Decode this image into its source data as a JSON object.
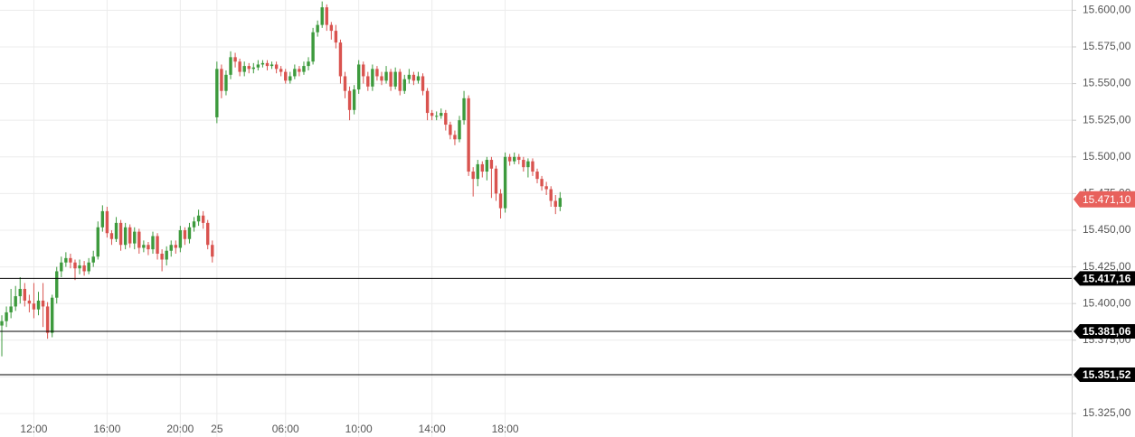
{
  "chart_data": {
    "type": "candlestick",
    "up_color": "#3d9a3d",
    "down_color": "#d9534f",
    "grid": true,
    "xlim": [
      -0.4,
      233.8
    ],
    "ylim": [
      15309,
      15607
    ],
    "xticks": [
      {
        "value": 7,
        "label": "12:00"
      },
      {
        "value": 23,
        "label": "16:00"
      },
      {
        "value": 39,
        "label": "20:00"
      },
      {
        "value": 47,
        "label": "25"
      },
      {
        "value": 62,
        "label": "06:00"
      },
      {
        "value": 78,
        "label": "10:00"
      },
      {
        "value": 94,
        "label": "14:00"
      },
      {
        "value": 110,
        "label": "18:00"
      }
    ],
    "yticks": [
      {
        "value": 15325,
        "label": "15.325,00"
      },
      {
        "value": 15350,
        "label": "15.350,00"
      },
      {
        "value": 15375,
        "label": "15.375,00"
      },
      {
        "value": 15400,
        "label": "15.400,00"
      },
      {
        "value": 15425,
        "label": "15.425,00"
      },
      {
        "value": 15450,
        "label": "15.450,00"
      },
      {
        "value": 15475,
        "label": "15.475,00"
      },
      {
        "value": 15500,
        "label": "15.500,00"
      },
      {
        "value": 15525,
        "label": "15.525,00"
      },
      {
        "value": 15550,
        "label": "15.550,00"
      },
      {
        "value": 15575,
        "label": "15.575,00"
      },
      {
        "value": 15600,
        "label": "15.600,00"
      }
    ],
    "levels": [
      {
        "value": 15417.16,
        "label": "15.417,16"
      },
      {
        "value": 15381.06,
        "label": "15.381,06"
      },
      {
        "value": 15351.52,
        "label": "15.351,52"
      }
    ],
    "last_price": {
      "value": 15471.1,
      "label": "15.471,10",
      "color": "#e8615c"
    },
    "candles": [
      [
        15385,
        15392,
        15364,
        15388
      ],
      [
        15388,
        15398,
        15384,
        15394
      ],
      [
        15394,
        15410,
        15390,
        15398
      ],
      [
        15398,
        15412,
        15395,
        15405
      ],
      [
        15405,
        15418,
        15400,
        15410
      ],
      [
        15410,
        15414,
        15398,
        15402
      ],
      [
        15402,
        15406,
        15394,
        15400
      ],
      [
        15400,
        15414,
        15390,
        15396
      ],
      [
        15396,
        15408,
        15392,
        15402
      ],
      [
        15402,
        15414,
        15384,
        15398
      ],
      [
        15398,
        15401,
        15376,
        15380
      ],
      [
        15380,
        15406,
        15377,
        15404
      ],
      [
        15404,
        15425,
        15400,
        15422
      ],
      [
        15422,
        15432,
        15418,
        15428
      ],
      [
        15428,
        15435,
        15425,
        15431
      ],
      [
        15431,
        15434,
        15424,
        15428
      ],
      [
        15428,
        15430,
        15416,
        15424
      ],
      [
        15424,
        15430,
        15420,
        15426
      ],
      [
        15426,
        15429,
        15419,
        15422
      ],
      [
        15422,
        15431,
        15420,
        15428
      ],
      [
        15428,
        15436,
        15425,
        15432
      ],
      [
        15432,
        15456,
        15430,
        15452
      ],
      [
        15452,
        15467,
        15449,
        15463
      ],
      [
        15463,
        15466,
        15445,
        15448
      ],
      [
        15448,
        15450,
        15440,
        15444
      ],
      [
        15444,
        15459,
        15442,
        15455
      ],
      [
        15455,
        15457,
        15436,
        15440
      ],
      [
        15440,
        15455,
        15437,
        15452
      ],
      [
        15452,
        15454,
        15438,
        15441
      ],
      [
        15441,
        15452,
        15437,
        15449
      ],
      [
        15449,
        15451,
        15434,
        15438
      ],
      [
        15438,
        15443,
        15435,
        15440
      ],
      [
        15440,
        15442,
        15433,
        15437
      ],
      [
        15437,
        15449,
        15434,
        15446
      ],
      [
        15446,
        15448,
        15430,
        15434
      ],
      [
        15434,
        15437,
        15422,
        15430
      ],
      [
        15430,
        15439,
        15426,
        15436
      ],
      [
        15436,
        15443,
        15432,
        15440
      ],
      [
        15440,
        15443,
        15434,
        15438
      ],
      [
        15438,
        15453,
        15435,
        15450
      ],
      [
        15450,
        15452,
        15440,
        15444
      ],
      [
        15444,
        15455,
        15441,
        15452
      ],
      [
        15452,
        15459,
        15449,
        15456
      ],
      [
        15456,
        15464,
        15453,
        15460
      ],
      [
        15460,
        15463,
        15451,
        15455
      ],
      [
        15455,
        15457,
        15437,
        15440
      ],
      [
        15440,
        15443,
        15428,
        15432
      ],
      [
        15527,
        15565,
        15523,
        15560
      ],
      [
        15560,
        15563,
        15540,
        15545
      ],
      [
        15545,
        15559,
        15542,
        15556
      ],
      [
        15556,
        15572,
        15553,
        15568
      ],
      [
        15568,
        15571,
        15561,
        15565
      ],
      [
        15565,
        15567,
        15555,
        15558
      ],
      [
        15558,
        15565,
        15555,
        15562
      ],
      [
        15562,
        15564,
        15557,
        15560
      ],
      [
        15560,
        15564,
        15557,
        15561
      ],
      [
        15561,
        15566,
        15559,
        15563
      ],
      [
        15563,
        15566,
        15561,
        15564
      ],
      [
        15564,
        15566,
        15559,
        15562
      ],
      [
        15562,
        15565,
        15560,
        15563
      ],
      [
        15563,
        15565,
        15557,
        15560
      ],
      [
        15560,
        15562,
        15555,
        15558
      ],
      [
        15558,
        15560,
        15550,
        15552
      ],
      [
        15552,
        15558,
        15550,
        15555
      ],
      [
        15555,
        15563,
        15553,
        15560
      ],
      [
        15560,
        15562,
        15555,
        15558
      ],
      [
        15558,
        15565,
        15556,
        15562
      ],
      [
        15562,
        15568,
        15559,
        15565
      ],
      [
        15565,
        15588,
        15563,
        15585
      ],
      [
        15585,
        15593,
        15582,
        15590
      ],
      [
        15590,
        15606,
        15588,
        15602
      ],
      [
        15602,
        15604,
        15586,
        15590
      ],
      [
        15590,
        15592,
        15580,
        15586
      ],
      [
        15586,
        15590,
        15574,
        15578
      ],
      [
        15578,
        15580,
        15550,
        15555
      ],
      [
        15555,
        15558,
        15540,
        15545
      ],
      [
        15545,
        15548,
        15525,
        15532
      ],
      [
        15532,
        15549,
        15529,
        15546
      ],
      [
        15546,
        15566,
        15543,
        15563
      ],
      [
        15563,
        15565,
        15550,
        15555
      ],
      [
        15555,
        15558,
        15545,
        15548
      ],
      [
        15548,
        15563,
        15545,
        15560
      ],
      [
        15560,
        15562,
        15552,
        15555
      ],
      [
        15555,
        15558,
        15549,
        15552
      ],
      [
        15552,
        15562,
        15550,
        15558
      ],
      [
        15558,
        15560,
        15545,
        15548
      ],
      [
        15548,
        15561,
        15546,
        15558
      ],
      [
        15558,
        15560,
        15542,
        15545
      ],
      [
        15545,
        15556,
        15543,
        15553
      ],
      [
        15553,
        15560,
        15550,
        15556
      ],
      [
        15556,
        15558,
        15549,
        15552
      ],
      [
        15552,
        15558,
        15550,
        15555
      ],
      [
        15555,
        15557,
        15542,
        15545
      ],
      [
        15545,
        15547,
        15525,
        15530
      ],
      [
        15530,
        15532,
        15525,
        15528
      ],
      [
        15528,
        15531,
        15525,
        15528
      ],
      [
        15528,
        15533,
        15526,
        15530
      ],
      [
        15530,
        15532,
        15518,
        15522
      ],
      [
        15522,
        15524,
        15512,
        15515
      ],
      [
        15515,
        15518,
        15508,
        15512
      ],
      [
        15512,
        15528,
        15510,
        15525
      ],
      [
        15525,
        15545,
        15522,
        15540
      ],
      [
        15540,
        15542,
        15487,
        15490
      ],
      [
        15490,
        15493,
        15473,
        15485
      ],
      [
        15485,
        15498,
        15480,
        15495
      ],
      [
        15495,
        15497,
        15486,
        15490
      ],
      [
        15490,
        15500,
        15484,
        15498
      ],
      [
        15498,
        15500,
        15472,
        15492
      ],
      [
        15492,
        15494,
        15470,
        15475
      ],
      [
        15475,
        15478,
        15458,
        15465
      ],
      [
        15465,
        15503,
        15462,
        15500
      ],
      [
        15500,
        15502,
        15494,
        15497
      ],
      [
        15497,
        15503,
        15495,
        15500
      ],
      [
        15500,
        15502,
        15495,
        15498
      ],
      [
        15498,
        15500,
        15490,
        15493
      ],
      [
        15493,
        15499,
        15486,
        15497
      ],
      [
        15497,
        15499,
        15487,
        15490
      ],
      [
        15490,
        15492,
        15482,
        15485
      ],
      [
        15485,
        15487,
        15477,
        15480
      ],
      [
        15480,
        15483,
        15474,
        15478
      ],
      [
        15478,
        15480,
        15466,
        15470
      ],
      [
        15470,
        15474,
        15461,
        15466
      ],
      [
        15466,
        15476,
        15463,
        15472
      ]
    ]
  }
}
